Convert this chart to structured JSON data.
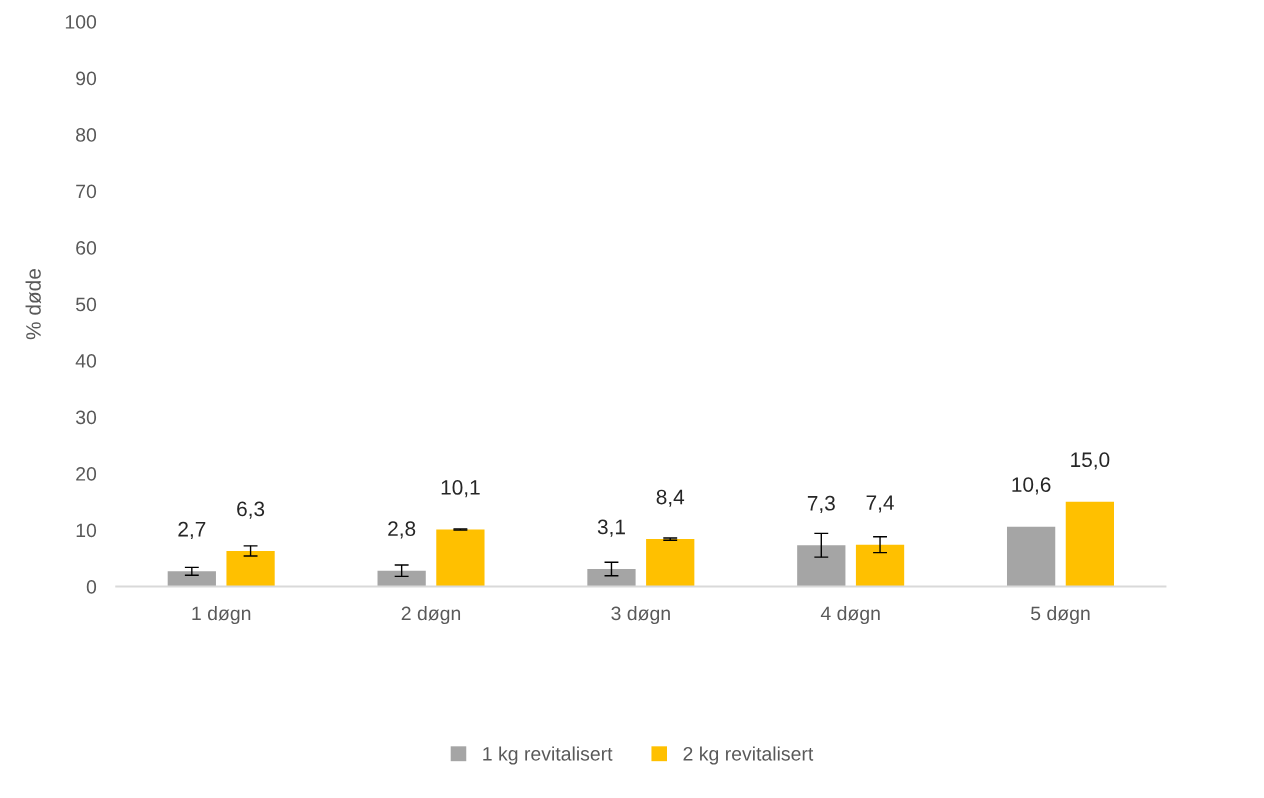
{
  "chart_data": {
    "type": "bar",
    "ylabel": "% døde",
    "categories": [
      "1 døgn",
      "2 døgn",
      "3 døgn",
      "4 døgn",
      "5 døgn"
    ],
    "series": [
      {
        "name": "1 kg revitalisert",
        "color": "#a5a5a5",
        "values": [
          2.7,
          2.8,
          3.1,
          7.3,
          10.6
        ],
        "errors": [
          0.7,
          1.0,
          1.2,
          2.1,
          null
        ],
        "value_labels": [
          "2,7",
          "2,8",
          "3,1",
          "7,3",
          "10,6"
        ]
      },
      {
        "name": "2 kg revitalisert",
        "color": "#ffc000",
        "values": [
          6.3,
          10.1,
          8.4,
          7.4,
          15.0
        ],
        "errors": [
          0.9,
          0.1,
          0.2,
          1.4,
          null
        ],
        "value_labels": [
          "6,3",
          "10,1",
          "8,4",
          "7,4",
          "15,0"
        ]
      }
    ],
    "ylim": [
      0,
      100
    ],
    "yticks": [
      0,
      10,
      20,
      30,
      40,
      50,
      60,
      70,
      80,
      90,
      100
    ],
    "grid": false,
    "legend": "bottom"
  }
}
